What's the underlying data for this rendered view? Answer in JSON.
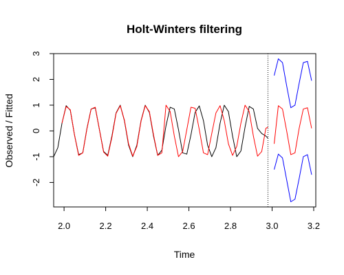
{
  "chart_data": {
    "type": "line",
    "title": "Holt-Winters filtering",
    "xlabel": "Time",
    "ylabel": "Observed / Fitted",
    "xlim": [
      1.95,
      3.21
    ],
    "ylim": [
      -2.95,
      3.0
    ],
    "xticks": [
      2.0,
      2.2,
      2.4,
      2.6,
      2.8,
      3.0,
      3.2
    ],
    "xtick_labels": [
      "2.0",
      "2.2",
      "2.4",
      "2.6",
      "2.8",
      "3.0",
      "3.2"
    ],
    "yticks": [
      -2,
      -1,
      0,
      1,
      2,
      3
    ],
    "ytick_labels": [
      "-2",
      "-1",
      "0",
      "1",
      "2",
      "3"
    ],
    "grid": false,
    "legend": false,
    "vline": {
      "x": 2.98,
      "style": "dotted",
      "color": "#000000"
    },
    "series": [
      {
        "role": "observed",
        "color": "#000000",
        "x": [
          1.95,
          1.97,
          1.99,
          2.01,
          2.03,
          2.05,
          2.07,
          2.09,
          2.11,
          2.13,
          2.15,
          2.17,
          2.19,
          2.21,
          2.23,
          2.25,
          2.27,
          2.29,
          2.31,
          2.33,
          2.35,
          2.37,
          2.39,
          2.41,
          2.43,
          2.45,
          2.47,
          2.49,
          2.51,
          2.53,
          2.55,
          2.57,
          2.59,
          2.61,
          2.63,
          2.65,
          2.67,
          2.69,
          2.71,
          2.73,
          2.75,
          2.77,
          2.79,
          2.81,
          2.83,
          2.85,
          2.87,
          2.89,
          2.91,
          2.93,
          2.95,
          2.97,
          2.98
        ],
        "y": [
          -1.0,
          -0.65,
          0.3,
          0.98,
          0.8,
          -0.15,
          -0.92,
          -0.85,
          0.1,
          0.85,
          0.9,
          0.05,
          -0.8,
          -0.95,
          -0.2,
          0.7,
          1.0,
          0.4,
          -0.55,
          -1.0,
          -0.55,
          0.4,
          1.0,
          0.72,
          -0.2,
          -0.95,
          -0.75,
          0.2,
          0.92,
          0.85,
          0.05,
          -0.85,
          -0.9,
          -0.15,
          0.72,
          0.97,
          0.4,
          -0.55,
          -1.0,
          -0.65,
          0.3,
          1.0,
          0.75,
          -0.2,
          -1.0,
          -0.78,
          0.15,
          0.95,
          0.85,
          0.1,
          -0.1,
          -0.2,
          -0.28
        ]
      },
      {
        "role": "fitted",
        "color": "#ff0000",
        "x": [
          1.99,
          2.01,
          2.03,
          2.05,
          2.07,
          2.09,
          2.11,
          2.13,
          2.15,
          2.17,
          2.19,
          2.21,
          2.23,
          2.25,
          2.27,
          2.29,
          2.31,
          2.33,
          2.35,
          2.37,
          2.39,
          2.41,
          2.43,
          2.45,
          2.47,
          2.49,
          2.51,
          2.53,
          2.55,
          2.57,
          2.59,
          2.61,
          2.63,
          2.65,
          2.67,
          2.69,
          2.71,
          2.73,
          2.75,
          2.77,
          2.79,
          2.81,
          2.83,
          2.85,
          2.87,
          2.89,
          2.91,
          2.93,
          2.95,
          2.97,
          2.98
        ],
        "y": [
          0.3,
          0.95,
          0.82,
          -0.15,
          -0.95,
          -0.85,
          0.08,
          0.85,
          0.92,
          0.05,
          -0.82,
          -0.98,
          -0.25,
          0.68,
          0.98,
          0.42,
          -0.5,
          -0.98,
          -0.6,
          0.38,
          0.98,
          0.75,
          -0.15,
          -0.95,
          -0.85,
          1.0,
          0.75,
          -0.2,
          -1.0,
          -0.8,
          0.05,
          0.92,
          0.88,
          0.05,
          -0.85,
          -0.92,
          -0.1,
          0.7,
          0.98,
          0.4,
          -0.5,
          -0.95,
          -0.6,
          0.3,
          1.0,
          0.75,
          -0.2,
          -0.98,
          -0.8,
          0.1,
          0.15
        ]
      },
      {
        "role": "prediction",
        "color": "#ff0000",
        "x": [
          3.01,
          3.03,
          3.05,
          3.07,
          3.09,
          3.11,
          3.13,
          3.15,
          3.17,
          3.19
        ],
        "y": [
          -0.5,
          0.98,
          0.85,
          0.0,
          -0.92,
          -0.85,
          0.1,
          0.85,
          0.9,
          0.1
        ]
      },
      {
        "role": "upper-bound",
        "color": "#0000ff",
        "x": [
          3.01,
          3.03,
          3.05,
          3.07,
          3.09,
          3.11,
          3.13,
          3.15,
          3.17,
          3.19
        ],
        "y": [
          2.15,
          2.8,
          2.65,
          1.75,
          0.9,
          1.0,
          1.85,
          2.65,
          2.7,
          1.95
        ]
      },
      {
        "role": "lower-bound",
        "color": "#0000ff",
        "x": [
          3.01,
          3.03,
          3.05,
          3.07,
          3.09,
          3.11,
          3.13,
          3.15,
          3.17,
          3.19
        ],
        "y": [
          -1.5,
          -0.9,
          -1.05,
          -1.9,
          -2.75,
          -2.65,
          -1.85,
          -1.0,
          -0.92,
          -1.7
        ]
      }
    ]
  }
}
